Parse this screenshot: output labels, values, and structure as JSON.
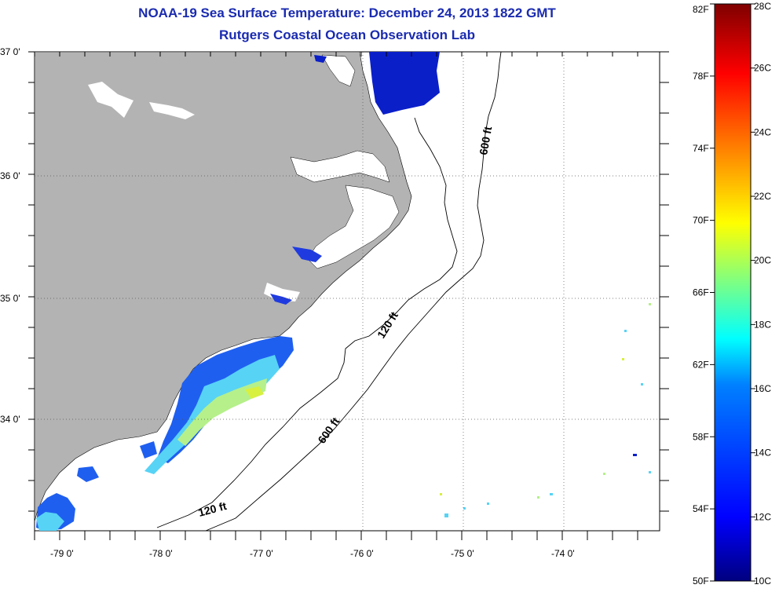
{
  "title_line1": "NOAA-19 Sea Surface Temperature:  December 24, 2013 1822 GMT",
  "title_line2": "Rutgers Coastal Ocean Observation Lab",
  "lat_labels": [
    {
      "text": "37 0'",
      "lat": 37
    },
    {
      "text": "36 0'",
      "lat": 36
    },
    {
      "text": "35 0'",
      "lat": 35
    },
    {
      "text": "34 0'",
      "lat": 34
    }
  ],
  "lon_labels": [
    {
      "text": "-79 0'",
      "lon": -79
    },
    {
      "text": "-78 0'",
      "lon": -78
    },
    {
      "text": "-77 0'",
      "lon": -77
    },
    {
      "text": "-76 0'",
      "lon": -76
    },
    {
      "text": "-75 0'",
      "lon": -75
    },
    {
      "text": "-74 0'",
      "lon": -74
    }
  ],
  "contour_labels": {
    "c600_north": "600 ft",
    "c120_mid": "120 ft",
    "c600_south": "600 ft",
    "c120_south": "120 ft"
  },
  "colorbar": {
    "f_labels": [
      "82F",
      "78F",
      "74F",
      "70F",
      "66F",
      "62F",
      "58F",
      "54F",
      "50F"
    ],
    "c_labels": [
      "28C",
      "26C",
      "24C",
      "22C",
      "20C",
      "18C",
      "16C",
      "14C",
      "12C",
      "10C"
    ],
    "c_min": 10,
    "c_max": 28,
    "stops": [
      "#00007f",
      "#0000ff",
      "#0080ff",
      "#00ffff",
      "#80ff80",
      "#ffff00",
      "#ff8000",
      "#ff0000",
      "#7f0000"
    ]
  },
  "colors": {
    "land": "#b3b3b3",
    "sst_cold": "#0b1fc9",
    "sst_blue": "#1f5ff0",
    "sst_cyan": "#57d3f5",
    "sst_green": "#b5f08a",
    "title": "#1a2bb0"
  }
}
